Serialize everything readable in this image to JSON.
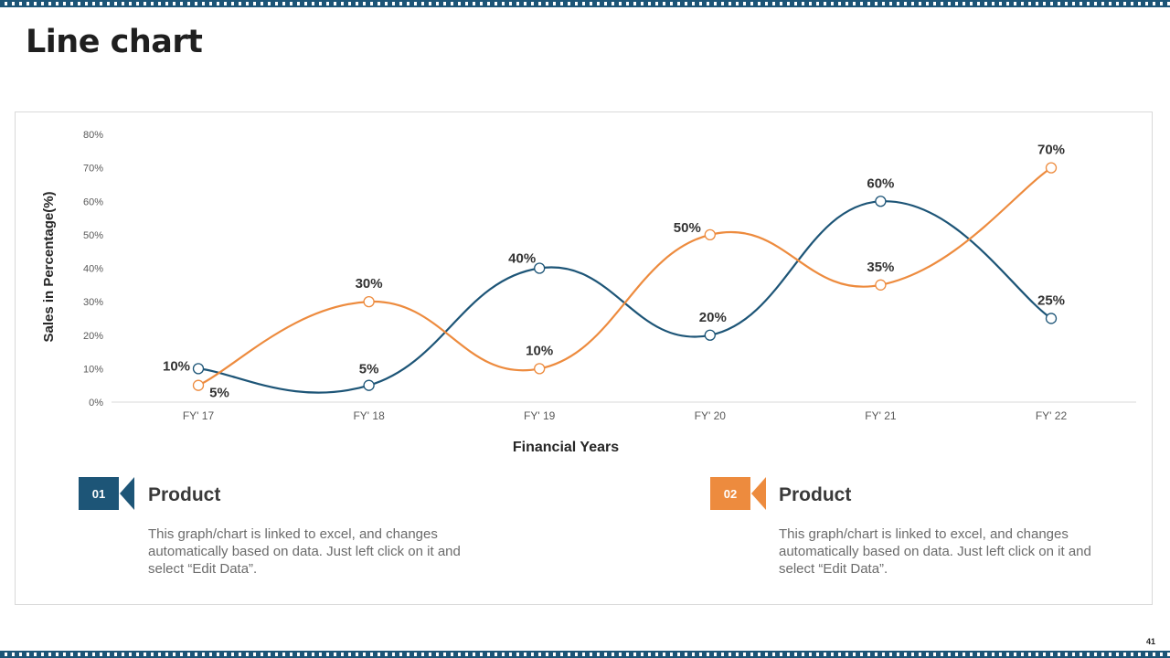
{
  "slide": {
    "title": "Line chart",
    "page_number": "41"
  },
  "colors": {
    "series1": "#1d5577",
    "series2": "#ed8b3e",
    "axis_text": "#595959",
    "grid": "#d9d9d9"
  },
  "chart_data": {
    "type": "line",
    "smooth": true,
    "categories": [
      "FY' 17",
      "FY' 18",
      "FY' 19",
      "FY' 20",
      "FY' 21",
      "FY' 22"
    ],
    "series": [
      {
        "name": "Product 01",
        "color": "#1d5577",
        "values": [
          10,
          5,
          40,
          20,
          60,
          25
        ],
        "labels": [
          "10%",
          "5%",
          "40%",
          "20%",
          "60%",
          "25%"
        ]
      },
      {
        "name": "Product 02",
        "color": "#ed8b3e",
        "values": [
          5,
          30,
          10,
          50,
          35,
          70
        ],
        "labels": [
          "5%",
          "30%",
          "10%",
          "50%",
          "35%",
          "70%"
        ]
      }
    ],
    "y_ticks": [
      "0%",
      "10%",
      "20%",
      "30%",
      "40%",
      "50%",
      "60%",
      "70%",
      "80%"
    ],
    "ylim": [
      0,
      80
    ],
    "xlabel": "Financial Years",
    "ylabel": "Sales in Percentage(%)",
    "grid": false
  },
  "legend": [
    {
      "number": "01",
      "title": "Product",
      "description": "This graph/chart is linked to excel, and changes automatically based on data. Just left click on it and select “Edit Data”."
    },
    {
      "number": "02",
      "title": "Product",
      "description": "This graph/chart is linked to excel, and changes automatically based on data. Just left click on it and select “Edit Data”."
    }
  ]
}
